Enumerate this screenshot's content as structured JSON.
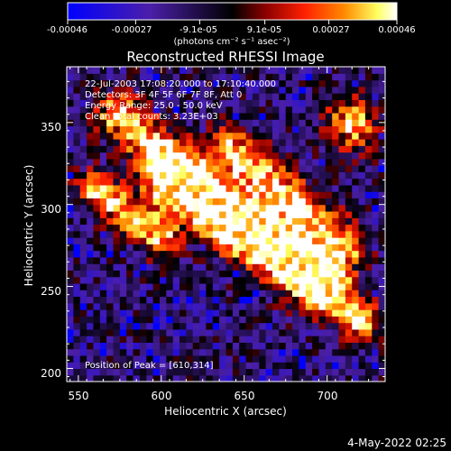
{
  "colorbar": {
    "tick_labels": [
      "-0.00046",
      "-0.00027",
      "-9.1e-05",
      "9.1e-05",
      "0.00027",
      "0.00046"
    ],
    "tick_values": [
      -0.00046,
      -0.00027,
      -9.1e-05,
      9.1e-05,
      0.00027,
      0.00046
    ],
    "range": [
      -0.00046,
      0.00046
    ],
    "units_label": "(photons cm⁻² s⁻¹ asec⁻²)",
    "colors": [
      "#0000ff",
      "#4b1fa8",
      "#000000",
      "#8a0000",
      "#ff2000",
      "#ff8a00",
      "#ffff60",
      "#ffffff"
    ]
  },
  "chart_data": {
    "type": "heatmap",
    "title": "Reconstructed RHESSI Image",
    "xlabel": "Heliocentric X (arcsec)",
    "ylabel": "Heliocentric Y (arcsec)",
    "xlim": [
      543,
      735
    ],
    "ylim": [
      192,
      384
    ],
    "xticks": [
      550,
      600,
      650,
      700
    ],
    "yticks": [
      200,
      250,
      300,
      350
    ],
    "x_tick_labels": [
      "550",
      "600",
      "650",
      "700"
    ],
    "y_tick_labels": [
      "200",
      "250",
      "300",
      "350"
    ],
    "info_lines": [
      "22-Jul-2003 17:08:20.000 to 17:10:40.000",
      "Detectors: 3F 4F 5F 6F 7F 8F, Att 0",
      "Energy Range: 25.0 - 50.0 keV",
      "Clean    Total counts: 3.23E+03"
    ],
    "peak_label": "Position of Peak = [610,314]",
    "peak_position": [
      610,
      314
    ],
    "bright_ridges": [
      {
        "from": [
          575,
          355
        ],
        "to": [
          645,
          290
        ],
        "width": 10
      },
      {
        "from": [
          605,
          315
        ],
        "to": [
          690,
          255
        ],
        "width": 12
      },
      {
        "from": [
          640,
          335
        ],
        "to": [
          710,
          275
        ],
        "width": 10
      },
      {
        "from": [
          660,
          285
        ],
        "to": [
          720,
          230
        ],
        "width": 9
      },
      {
        "from": [
          560,
          310
        ],
        "to": [
          600,
          280
        ],
        "width": 8
      }
    ],
    "bright_spots": [
      {
        "center": [
          715,
          350
        ],
        "radius": 12,
        "intensity": 0.00046
      },
      {
        "center": [
          610,
          314
        ],
        "radius": 8,
        "intensity": 0.00046
      },
      {
        "center": [
          695,
          255
        ],
        "radius": 8,
        "intensity": 0.0004
      }
    ]
  },
  "timestamp": "4-May-2022 02:25"
}
